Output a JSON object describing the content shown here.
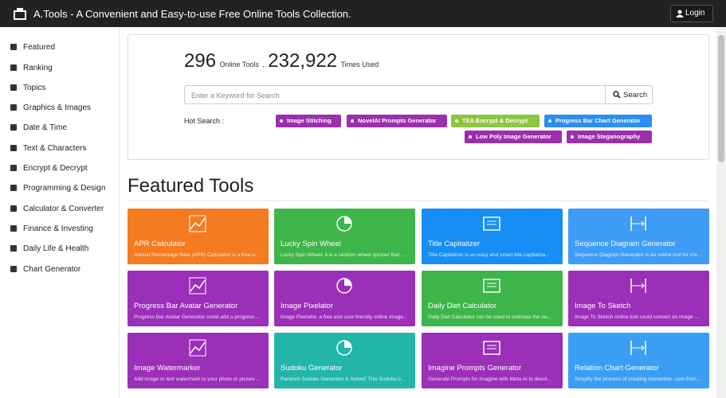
{
  "header": {
    "title": "A.Tools - A Convenient and Easy-to-use Free Online Tools Collection.",
    "login": "Login"
  },
  "sidebar": {
    "items": [
      "Featured",
      "Ranking",
      "Topics",
      "Graphics & Images",
      "Date & Time",
      "Text & Characters",
      "Encrypt & Decrypt",
      "Programming & Design",
      "Calculator & Converter",
      "Finance & Investing",
      "Daily Life & Health",
      "Chart Generator"
    ]
  },
  "stats": {
    "tools_count": "296",
    "tools_label": "Online Tools",
    "separator": ",",
    "times_count": "232,922",
    "times_label": "Times Used"
  },
  "search": {
    "placeholder": "Enter a Keyword for Search",
    "button": "Search"
  },
  "hot_search": {
    "label": "Hot Search :",
    "tags": [
      "Image Stitching",
      "NovelAI Prompts Generator",
      "TEA Encrypt & Decrypt",
      "Progress Bar Chart Generator",
      "Low Poly Image Generator",
      "Image Steganography"
    ]
  },
  "featured": {
    "heading": "Featured Tools",
    "tools": [
      {
        "title": "APR Calculator",
        "description": "Annual Percentage Rate (APR) Calculator is a free o..."
      },
      {
        "title": "Lucky Spin Wheel",
        "description": "Lucky Spin Wheel, it is a random wheel spinner that ..."
      },
      {
        "title": "Title Capitalizer",
        "description": "Title Capitalizer is an easy and smart title capitaliza..."
      },
      {
        "title": "Sequence Diagram Generator",
        "description": "Sequence Diagram Generator is an online tool for cre..."
      },
      {
        "title": "Progress Bar Avatar Generator",
        "description": "Progress Bar Avatar Generator could add a progress ..."
      },
      {
        "title": "Image Pixelator",
        "description": "Image Pixelator, a free and user-friendly online image..."
      },
      {
        "title": "Daily Diet Calculator",
        "description": "Daily Diet Calculator can be used to estimate the nu..."
      },
      {
        "title": "Image To Sketch",
        "description": "Image To Sketch online tool could convert an image ..."
      },
      {
        "title": "Image Watermarker",
        "description": "Add image or text watermark to your photo or picture ..."
      },
      {
        "title": "Sudoku Generator",
        "description": "Random Sudoku Generator & Solver! This Sudoku o..."
      },
      {
        "title": "Imagine Prompts Generator",
        "description": "Generate Prompts for Imagine with Meta AI to desol..."
      },
      {
        "title": "Relation Chart Generator",
        "description": "Simplify the process of creating interactive, user-frien..."
      }
    ]
  }
}
